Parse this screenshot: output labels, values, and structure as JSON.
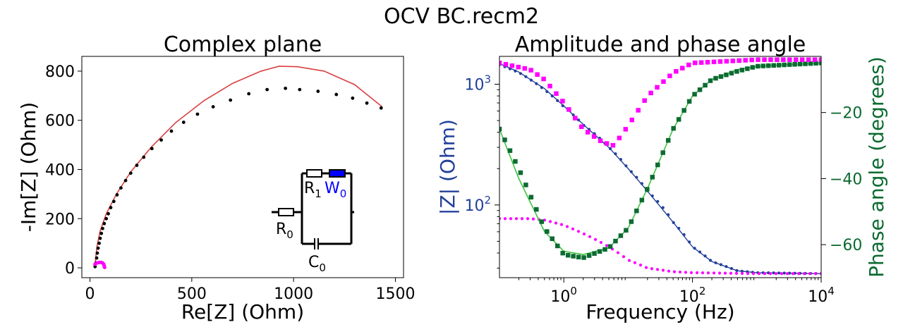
{
  "figure": {
    "suptitle": "OCV BC.recm2",
    "colors": {
      "nyquist_fit": "#d94040",
      "nyquist_data": "#000000",
      "nyquist_data_low": "#ff00ff",
      "modulus": "#23409a",
      "phase": "#0b6b31",
      "phase_fit": "#3cc43c",
      "magenta": "#ff00ff",
      "warburg": "#0000ff"
    }
  },
  "chart_data": [
    {
      "type": "scatter",
      "panel": "nyquist",
      "title": "Complex plane",
      "xlabel": "Re[Z] (Ohm)",
      "ylabel": "-Im[Z] (Ohm)",
      "xlim": [
        -40,
        1540
      ],
      "ylim": [
        -40,
        860
      ],
      "xticks": [
        0,
        500,
        1000,
        1500
      ],
      "yticks": [
        0,
        200,
        400,
        600,
        800
      ],
      "grid": false,
      "series": [
        {
          "kind": "points",
          "values": [
            [
              25,
              5
            ],
            [
              30,
              20
            ],
            [
              33,
              40
            ],
            [
              36,
              60
            ],
            [
              40,
              80
            ],
            [
              45,
              100
            ],
            [
              50,
              120
            ],
            [
              56,
              140
            ],
            [
              62,
              160
            ],
            [
              70,
              180
            ],
            [
              80,
              200
            ],
            [
              90,
              220
            ],
            [
              102,
              245
            ],
            [
              117,
              270
            ],
            [
              133,
              297
            ],
            [
              152,
              325
            ],
            [
              175,
              355
            ],
            [
              200,
              385
            ],
            [
              230,
              417
            ],
            [
              264,
              450
            ],
            [
              304,
              485
            ],
            [
              350,
              520
            ],
            [
              400,
              556
            ],
            [
              460,
              592
            ],
            [
              528,
              625
            ],
            [
              605,
              655
            ],
            [
              690,
              682
            ],
            [
              780,
              708
            ],
            [
              870,
              725
            ],
            [
              960,
              730
            ],
            [
              1030,
              725
            ],
            [
              1120,
              718
            ],
            [
              1210,
              705
            ],
            [
              1290,
              690
            ],
            [
              1360,
              670
            ],
            [
              1430,
              650
            ]
          ]
        },
        {
          "kind": "points-low",
          "values": [
            [
              25,
              15
            ],
            [
              35,
              20
            ],
            [
              45,
              22
            ],
            [
              55,
              22
            ],
            [
              62,
              20
            ],
            [
              67,
              15
            ],
            [
              70,
              8
            ],
            [
              72,
              2
            ]
          ]
        },
        {
          "kind": "fit-line",
          "values": [
            [
              25,
              0
            ],
            [
              28,
              40
            ],
            [
              35,
              90
            ],
            [
              50,
              150
            ],
            [
              80,
              220
            ],
            [
              130,
              300
            ],
            [
              200,
              390
            ],
            [
              300,
              490
            ],
            [
              420,
              590
            ],
            [
              560,
              680
            ],
            [
              700,
              750
            ],
            [
              840,
              800
            ],
            [
              930,
              820
            ],
            [
              1020,
              818
            ],
            [
              1150,
              800
            ],
            [
              1300,
              745
            ],
            [
              1435,
              655
            ]
          ]
        }
      ],
      "inset": {
        "labels": {
          "r0": "R0",
          "r1": "R1",
          "w0": "W0",
          "c0": "C0"
        }
      }
    },
    {
      "type": "line",
      "panel": "bode",
      "title": "Amplitude and phase angle",
      "xlabel": "Frequency (Hz)",
      "ylabel": "|Z| (Ohm)",
      "ylabel_right": "Phase angle (degrees)",
      "x_scale": "log",
      "y_scale": "log",
      "xlim": [
        0.1,
        10000
      ],
      "ylim": [
        25,
        1700
      ],
      "ylim_right": [
        -70,
        -3
      ],
      "xticks": [
        1,
        100,
        10000
      ],
      "xtick_labels": [
        "10^0",
        "10^2",
        "10^4"
      ],
      "yticks": [
        100,
        1000
      ],
      "ytick_labels": [
        "10^2",
        "10^3"
      ],
      "yticks_right": [
        -60,
        -40,
        -20
      ],
      "yticks_right_labels": [
        "−60",
        "−40",
        "−20"
      ],
      "grid": false,
      "modulus_points": [
        [
          0.1,
          1450
        ],
        [
          0.2,
          1250
        ],
        [
          0.5,
          900
        ],
        [
          1,
          650
        ],
        [
          2,
          460
        ],
        [
          5,
          300
        ],
        [
          10,
          200
        ],
        [
          20,
          130
        ],
        [
          50,
          72
        ],
        [
          100,
          45
        ],
        [
          200,
          34
        ],
        [
          500,
          28.5
        ],
        [
          1000,
          27.5
        ],
        [
          10000,
          27
        ]
      ],
      "modulus_fit": [
        [
          0.1,
          1480
        ],
        [
          0.2,
          1260
        ],
        [
          0.5,
          920
        ],
        [
          1,
          660
        ],
        [
          2,
          465
        ],
        [
          5,
          300
        ],
        [
          10,
          200
        ],
        [
          20,
          130
        ],
        [
          50,
          72
        ],
        [
          100,
          45
        ],
        [
          200,
          34
        ],
        [
          500,
          28.5
        ],
        [
          1000,
          27.5
        ],
        [
          10000,
          27
        ]
      ],
      "modulus_points_low": [
        [
          0.1,
          77
        ],
        [
          0.3,
          77
        ],
        [
          0.5,
          75
        ],
        [
          1,
          68
        ],
        [
          2,
          58
        ],
        [
          5,
          45
        ],
        [
          10,
          35
        ],
        [
          20,
          30
        ],
        [
          50,
          28
        ],
        [
          100,
          27.5
        ],
        [
          1000,
          27
        ],
        [
          10000,
          27
        ]
      ],
      "phase_points": [
        [
          0.1,
          -25
        ],
        [
          0.2,
          -37
        ],
        [
          0.5,
          -55
        ],
        [
          1,
          -63
        ],
        [
          2,
          -64
        ],
        [
          5,
          -61
        ],
        [
          10,
          -55
        ],
        [
          20,
          -43
        ],
        [
          50,
          -25
        ],
        [
          100,
          -15
        ],
        [
          200,
          -10
        ],
        [
          500,
          -7.5
        ],
        [
          1000,
          -6
        ],
        [
          10000,
          -5
        ]
      ],
      "phase_fit": [
        [
          0.1,
          -25
        ],
        [
          0.2,
          -40
        ],
        [
          0.5,
          -56
        ],
        [
          1,
          -62
        ],
        [
          2,
          -63
        ],
        [
          5,
          -61
        ],
        [
          10,
          -55
        ],
        [
          20,
          -43
        ],
        [
          50,
          -25
        ],
        [
          100,
          -15
        ],
        [
          200,
          -10
        ],
        [
          500,
          -7
        ],
        [
          1000,
          -6
        ],
        [
          10000,
          -5
        ]
      ],
      "phase_points_low": [
        [
          0.1,
          -5
        ],
        [
          0.3,
          -7
        ],
        [
          0.5,
          -10
        ],
        [
          1,
          -17
        ],
        [
          2,
          -25
        ],
        [
          4,
          -29
        ],
        [
          6,
          -30
        ],
        [
          10,
          -24
        ],
        [
          20,
          -15
        ],
        [
          50,
          -8
        ],
        [
          100,
          -5
        ],
        [
          1000,
          -4
        ],
        [
          10000,
          -4
        ]
      ]
    }
  ]
}
